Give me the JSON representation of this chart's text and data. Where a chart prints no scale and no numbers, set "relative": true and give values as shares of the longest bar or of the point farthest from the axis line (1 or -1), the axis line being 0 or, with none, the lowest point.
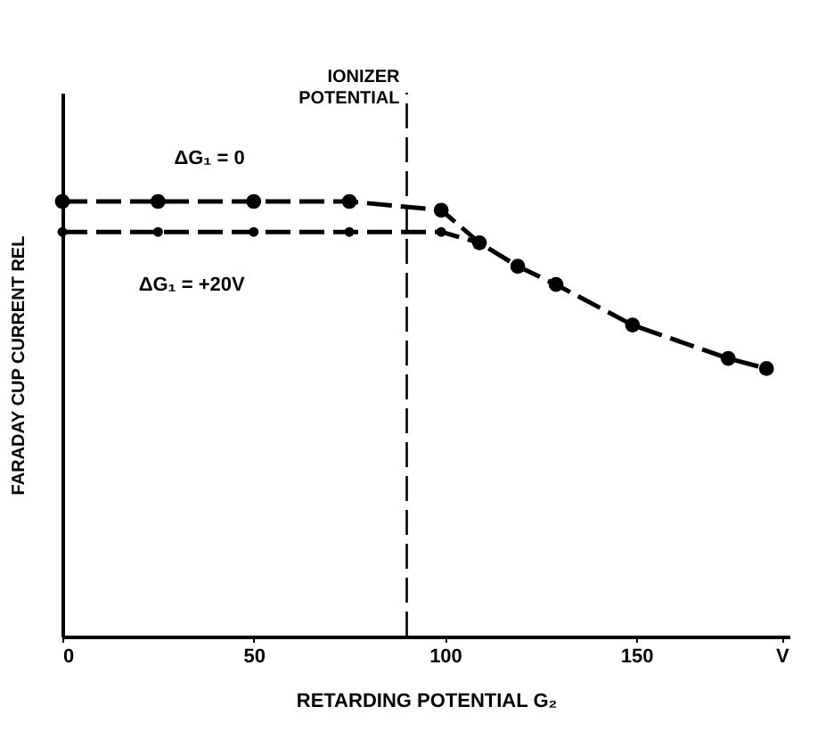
{
  "chart_data": {
    "type": "line",
    "relative": true,
    "xlabel": "RETARDING POTENTIAL G₂",
    "ylabel": "FARADAY CUP CURRENT REL",
    "xlim": [
      0,
      190
    ],
    "xticks": [
      0,
      50,
      100,
      150,
      {
        "value": 188,
        "label": "V"
      }
    ],
    "marker": "circle",
    "line_style": "dashed",
    "series": [
      {
        "name": "ΔG₁ = 0",
        "color": "#000000",
        "x": [
          0,
          25,
          50,
          75,
          99,
          109,
          119,
          129,
          149,
          174,
          184
        ],
        "values": [
          1,
          1,
          1,
          1,
          0.98,
          0.905,
          0.851,
          0.809,
          0.716,
          0.639,
          0.616
        ]
      },
      {
        "name": "ΔG₁ = +20V",
        "color": "#000000",
        "x": [
          0,
          25,
          50,
          75,
          99,
          109
        ],
        "values": [
          0.93,
          0.93,
          0.93,
          0.93,
          0.93,
          0.905
        ]
      }
    ],
    "ref_lines": [
      {
        "axis": "x",
        "value": 90,
        "label": "IONIZER POTENTIAL",
        "line_style": "dashed"
      }
    ]
  }
}
